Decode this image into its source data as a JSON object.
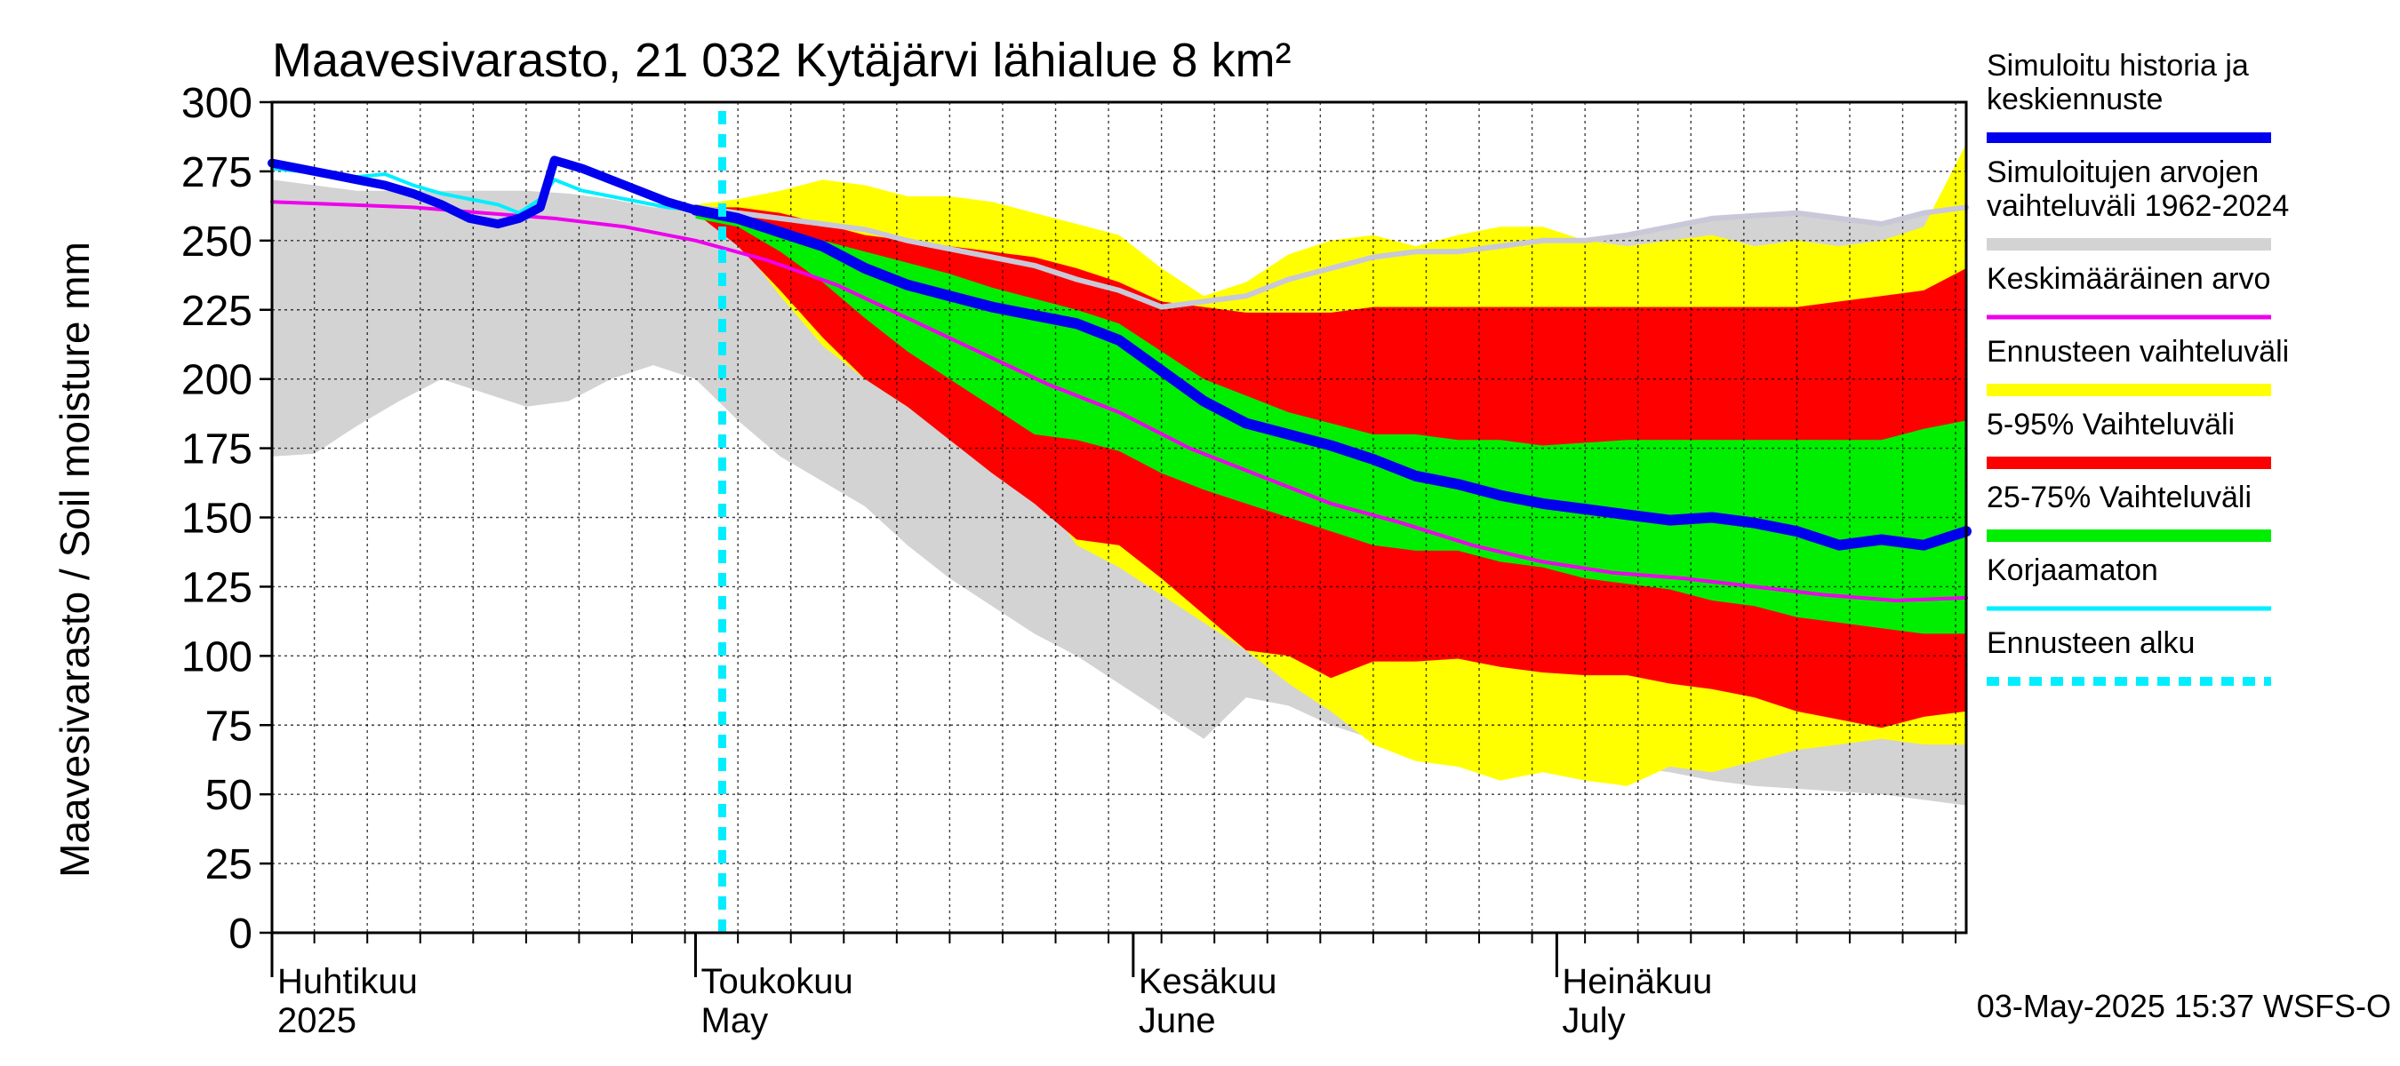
{
  "chart_data": {
    "type": "area",
    "title": "Maavesivarasto, 21 032 Kytäjärvi lähialue 8 km²",
    "ylabel": "Maavesivarasto / Soil moisture   mm",
    "ylim": [
      0,
      300
    ],
    "yticks": [
      "0",
      "25",
      "50",
      "75",
      "100",
      "125",
      "150",
      "175",
      "200",
      "225",
      "250",
      "275",
      "300"
    ],
    "x_range_days": [
      0,
      120
    ],
    "x_month_labels": [
      {
        "fi": "Huhtikuu",
        "en": "2025",
        "day": 0
      },
      {
        "fi": "Toukokuu",
        "en": "May",
        "day": 30
      },
      {
        "fi": "Kesäkuu",
        "en": "June",
        "day": 61
      },
      {
        "fi": "Heinäkuu",
        "en": "July",
        "day": 91
      }
    ],
    "forecast_start_day": 30,
    "timestamp": "03-May-2025 15:37 WSFS-O",
    "legend": [
      {
        "id": "sim",
        "label": "Simuloitu historia ja keskiennuste",
        "lines": [
          "Simuloitu historia ja",
          "keskiennuste"
        ],
        "color": "#0000ee",
        "style": "line"
      },
      {
        "id": "hist",
        "label": "Simuloitujen arvojen vaihteluväli 1962-2024",
        "lines": [
          "Simuloitujen arvojen",
          "vaihteluväli 1962-2024"
        ],
        "color": "#d3d3d3",
        "style": "band"
      },
      {
        "id": "avg",
        "label": "Keskimääräinen arvo",
        "lines": [
          "Keskimääräinen arvo"
        ],
        "color": "#ee00ee",
        "style": "line"
      },
      {
        "id": "range",
        "label": "Ennusteen vaihteluväli",
        "lines": [
          "Ennusteen vaihteluväli"
        ],
        "color": "#ffff00",
        "style": "band"
      },
      {
        "id": "p595",
        "label": "5-95% Vaihteluväli",
        "lines": [
          "5-95% Vaihteluväli"
        ],
        "color": "#ff0000",
        "style": "band"
      },
      {
        "id": "p2575",
        "label": "25-75% Vaihteluväli",
        "lines": [
          "25-75% Vaihteluväli"
        ],
        "color": "#00ee00",
        "style": "band"
      },
      {
        "id": "raw",
        "label": "Korjaamaton",
        "lines": [
          "Korjaamaton"
        ],
        "color": "#00eeff",
        "style": "line"
      },
      {
        "id": "start",
        "label": "Ennusteen alku",
        "lines": [
          "Ennusteen alku"
        ],
        "color": "#00eeff",
        "style": "dashed"
      }
    ],
    "series": {
      "hist_band": {
        "x": [
          0,
          3,
          6,
          9,
          12,
          15,
          18,
          21,
          24,
          27,
          30,
          33,
          36,
          39,
          42,
          45,
          48,
          51,
          54,
          57,
          60,
          63,
          66,
          69,
          72,
          75,
          78,
          81,
          84,
          87,
          90,
          93,
          96,
          99,
          102,
          105,
          108,
          111,
          114,
          117,
          120
        ],
        "upper": [
          272,
          270,
          268,
          268,
          268,
          268,
          268,
          267,
          265,
          262,
          262,
          260,
          258,
          256,
          254,
          250,
          247,
          244,
          241,
          236,
          232,
          226,
          228,
          230,
          236,
          240,
          244,
          246,
          246,
          248,
          250,
          250,
          252,
          255,
          258,
          259,
          260,
          258,
          256,
          260,
          262
        ],
        "lower": [
          172,
          173,
          183,
          192,
          200,
          195,
          190,
          192,
          200,
          205,
          200,
          185,
          172,
          163,
          154,
          140,
          128,
          118,
          108,
          100,
          90,
          80,
          70,
          85,
          82,
          75,
          70,
          68,
          72,
          75,
          65,
          62,
          60,
          58,
          55,
          53,
          52,
          51,
          50,
          48,
          46
        ]
      },
      "yellow_band": {
        "x": [
          30,
          33,
          36,
          39,
          42,
          45,
          48,
          51,
          54,
          57,
          60,
          63,
          66,
          69,
          72,
          75,
          78,
          81,
          84,
          87,
          90,
          93,
          96,
          99,
          102,
          105,
          108,
          111,
          114,
          117,
          120
        ],
        "upper": [
          263,
          265,
          268,
          272,
          270,
          266,
          266,
          264,
          260,
          256,
          252,
          240,
          230,
          235,
          245,
          250,
          252,
          248,
          252,
          255,
          255,
          250,
          248,
          250,
          252,
          248,
          250,
          248,
          250,
          255,
          285
        ],
        "lower": [
          260,
          250,
          230,
          212,
          200,
          190,
          180,
          170,
          162,
          140,
          132,
          122,
          112,
          102,
          90,
          80,
          68,
          62,
          60,
          55,
          58,
          55,
          53,
          60,
          58,
          62,
          66,
          68,
          70,
          68,
          68
        ]
      },
      "red_band": {
        "x": [
          30,
          33,
          36,
          39,
          42,
          45,
          48,
          51,
          54,
          57,
          60,
          63,
          66,
          69,
          72,
          75,
          78,
          81,
          84,
          87,
          90,
          93,
          96,
          99,
          102,
          105,
          108,
          111,
          114,
          117,
          120
        ],
        "upper": [
          262,
          262,
          260,
          256,
          252,
          250,
          248,
          246,
          244,
          240,
          235,
          228,
          226,
          224,
          224,
          224,
          226,
          226,
          226,
          226,
          226,
          226,
          226,
          226,
          226,
          226,
          226,
          228,
          230,
          232,
          240
        ],
        "lower": [
          260,
          248,
          232,
          215,
          200,
          190,
          178,
          166,
          155,
          142,
          140,
          128,
          115,
          102,
          100,
          92,
          98,
          98,
          99,
          96,
          94,
          93,
          93,
          90,
          88,
          85,
          80,
          77,
          74,
          78,
          80
        ]
      },
      "green_band": {
        "x": [
          30,
          33,
          36,
          39,
          42,
          45,
          48,
          51,
          54,
          57,
          60,
          63,
          66,
          69,
          72,
          75,
          78,
          81,
          84,
          87,
          90,
          93,
          96,
          99,
          102,
          105,
          108,
          111,
          114,
          117,
          120
        ],
        "upper": [
          261,
          258,
          254,
          250,
          246,
          242,
          238,
          233,
          229,
          225,
          220,
          210,
          200,
          194,
          188,
          184,
          180,
          180,
          178,
          178,
          176,
          177,
          178,
          178,
          178,
          178,
          178,
          178,
          178,
          182,
          185
        ],
        "lower": [
          258,
          255,
          246,
          235,
          222,
          210,
          200,
          190,
          180,
          178,
          174,
          166,
          160,
          155,
          150,
          145,
          140,
          138,
          138,
          134,
          132,
          128,
          126,
          124,
          120,
          118,
          114,
          112,
          110,
          108,
          108
        ]
      },
      "hist_sim_blue": {
        "x": [
          0,
          2,
          4,
          6,
          8,
          10,
          12,
          14,
          16,
          17.5,
          19,
          20,
          22,
          25,
          28,
          30
        ],
        "y": [
          278,
          276,
          274,
          272,
          270,
          267,
          263,
          258,
          256,
          258,
          262,
          279,
          276,
          270,
          264,
          261
        ]
      },
      "forecast_blue": {
        "x": [
          30,
          33,
          36,
          39,
          42,
          45,
          48,
          51,
          54,
          57,
          60,
          63,
          66,
          69,
          72,
          75,
          78,
          81,
          84,
          87,
          90,
          93,
          96,
          99,
          102,
          105,
          108,
          111,
          114,
          117,
          120
        ],
        "y": [
          261,
          258,
          253,
          248,
          240,
          234,
          230,
          226,
          223,
          220,
          214,
          203,
          192,
          184,
          180,
          176,
          171,
          165,
          162,
          158,
          155,
          153,
          151,
          149,
          150,
          148,
          145,
          140,
          142,
          140,
          145
        ]
      },
      "raw_cyan": {
        "x": [
          0,
          2,
          4,
          6,
          8,
          10,
          12,
          14,
          16,
          17.5,
          19,
          20,
          22,
          25,
          28,
          30
        ],
        "y": [
          276,
          275,
          274,
          273,
          274,
          270,
          267,
          265,
          263,
          260,
          265,
          272,
          268,
          265,
          262,
          261
        ]
      },
      "avg_magenta": {
        "x": [
          0,
          5,
          10,
          15,
          20,
          25,
          30,
          35,
          40,
          45,
          50,
          55,
          60,
          65,
          70,
          75,
          80,
          85,
          90,
          95,
          100,
          105,
          110,
          115,
          120
        ],
        "y": [
          264,
          263,
          262,
          260,
          258,
          255,
          250,
          243,
          234,
          222,
          210,
          198,
          188,
          175,
          165,
          155,
          148,
          140,
          134,
          130,
          128,
          125,
          122,
          120,
          121
        ]
      }
    }
  }
}
